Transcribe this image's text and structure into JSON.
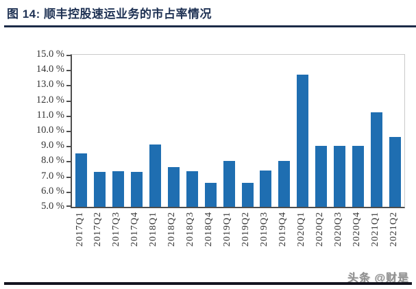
{
  "page": {
    "title": "图 14:  顺丰控股速运业务的市占率情况",
    "watermark": "头条 @财是"
  },
  "colors": {
    "title": "#1f3254",
    "title_rule": "#1b2a47",
    "bar": "#1f6eb1",
    "axis": "#4d4d4d",
    "frame": "#c9c9c9",
    "tick_label": "#333333",
    "watermark": "#8f8f8f",
    "bottom_rule": "#14141f"
  },
  "chart_data": {
    "type": "bar",
    "title": "顺丰控股速运业务的市占率情况",
    "categories": [
      "2017Q1",
      "2017Q2",
      "2017Q3",
      "2017Q4",
      "2018Q1",
      "2018Q2",
      "2018Q3",
      "2018Q4",
      "2019Q1",
      "2019Q2",
      "2019Q3",
      "2019Q4",
      "2020Q1",
      "2020Q2",
      "2020Q3",
      "2020Q4",
      "2021Q1",
      "2021Q2"
    ],
    "values": [
      8.5,
      7.3,
      7.35,
      7.3,
      9.1,
      7.6,
      7.35,
      6.6,
      8.0,
      6.6,
      7.4,
      8.0,
      13.7,
      9.0,
      9.0,
      9.0,
      11.2,
      9.6
    ],
    "unit": "%",
    "xlabel": "",
    "ylabel": "",
    "ylim": [
      5.0,
      15.0
    ],
    "ytick_step": 1.0,
    "ytick_labels": [
      "15.0 %",
      "14.0 %",
      "13.0 %",
      "12.0 %",
      "11.0 %",
      "10.0 %",
      "9.0 %",
      "8.0 %",
      "7.0 %",
      "6.0 %",
      "5.0 %"
    ],
    "bar_color": "#1f6eb1",
    "grid": false,
    "legend": false
  }
}
